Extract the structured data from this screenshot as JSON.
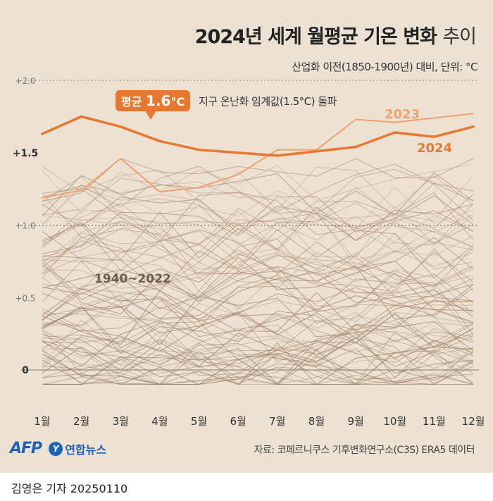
{
  "header": {
    "title_main": "2024년 세계 월평균 기온 변화",
    "title_light": "추이",
    "subtitle": "산업화 이전(1850-1900년) 대비, 단위: °C"
  },
  "annotations": {
    "avg_prefix": "평균",
    "avg_value": "1.6",
    "avg_unit": "°C",
    "threshold_note": "지구 온난화 임계값(1.5°C) 돌파",
    "historical_range_label": "1940~2022"
  },
  "footer": {
    "logo_afp": "AFP",
    "logo_yna_mark": "Y",
    "logo_yna": "연합뉴스",
    "source": "자료: 코페르니쿠스 기후변화연구소(C3S) ERA5 데이터",
    "credit": "김영은 기자  20250110"
  },
  "colors": {
    "background": "#ece1d2",
    "series_2024": "#e8782f",
    "series_2023": "#f0a070",
    "historical": "#b8a48e",
    "text": "#333333"
  },
  "chart_data": {
    "type": "line",
    "title": "2024년 세계 월평균 기온 변화 추이",
    "ylabel": "",
    "xlabel": "",
    "categories": [
      "1월",
      "2월",
      "3월",
      "4월",
      "5월",
      "6월",
      "7월",
      "8월",
      "9월",
      "10월",
      "11월",
      "12월"
    ],
    "ylim": [
      -0.05,
      2.0
    ],
    "yticks": [
      {
        "value": 2.0,
        "label": "+2.0"
      },
      {
        "value": 1.5,
        "label": "+1.5"
      },
      {
        "value": 1.0,
        "label": "+1.0"
      },
      {
        "value": 0.5,
        "label": "+0.5"
      },
      {
        "value": 0.0,
        "label": "0"
      }
    ],
    "series": [
      {
        "name": "2024",
        "values": [
          1.63,
          1.75,
          1.68,
          1.58,
          1.52,
          1.5,
          1.48,
          1.51,
          1.54,
          1.64,
          1.61,
          1.68
        ]
      },
      {
        "name": "2023",
        "values": [
          1.19,
          1.24,
          1.46,
          1.23,
          1.26,
          1.35,
          1.52,
          1.52,
          1.73,
          1.71,
          1.74,
          1.77
        ]
      }
    ],
    "historical_band": {
      "years": "1940~2022",
      "series_count": 83,
      "min_value": -0.1,
      "max_value": 1.46
    },
    "grid": false
  }
}
